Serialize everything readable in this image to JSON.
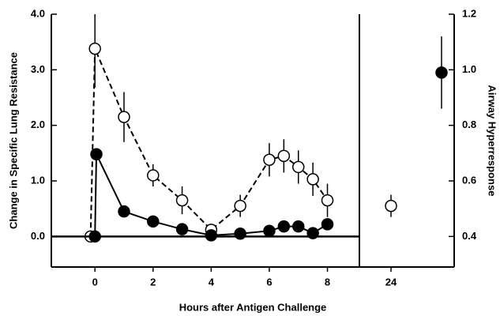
{
  "chart_data": [
    {
      "type": "scatter",
      "xlabel": "Hours after Antigen Challenge",
      "ylabel": "Change in Specific Lung Resistance",
      "xlim": [
        -1.5,
        9.1
      ],
      "xticks": [
        0,
        2,
        4,
        6,
        8
      ],
      "ylim": [
        -0.55,
        4.0
      ],
      "yticks": [
        {
          "value": 0,
          "label": "0.0"
        },
        {
          "value": 1,
          "label": "1.0"
        },
        {
          "value": 2,
          "label": "2.0"
        },
        {
          "value": 3,
          "label": "3.0"
        },
        {
          "value": 4,
          "label": "4.0"
        }
      ],
      "series": [
        {
          "color": "#000000",
          "marker": "open",
          "line": "dashed",
          "x": [
            -0.15,
            0,
            1,
            2,
            3,
            4,
            5,
            6,
            6.5,
            7,
            7.5,
            8
          ],
          "values": [
            0,
            3.38,
            2.15,
            1.1,
            0.65,
            0.12,
            0.55,
            1.38,
            1.45,
            1.25,
            1.03,
            0.65
          ],
          "errors": [
            null,
            0.7,
            0.45,
            0.2,
            0.25,
            0.1,
            0.2,
            0.3,
            0.3,
            0.3,
            0.3,
            0.3
          ]
        },
        {
          "color": "#000000",
          "marker": "filled",
          "line": "solid",
          "x": [
            0,
            0.05,
            1,
            2,
            3,
            4,
            5,
            6,
            6.5,
            7,
            7.5,
            8
          ],
          "values": [
            0,
            1.48,
            0.45,
            0.27,
            0.13,
            0.02,
            0.05,
            0.1,
            0.18,
            0.18,
            0.06,
            0.22
          ],
          "errors": [
            null,
            null,
            null,
            null,
            null,
            null,
            null,
            null,
            null,
            null,
            null,
            null
          ]
        }
      ]
    },
    {
      "type": "scatter",
      "y2label": "Airway Hyperresponse",
      "xlim": [
        23,
        26
      ],
      "xticks": [
        24
      ],
      "y2lim": [
        0.29,
        1.2
      ],
      "y2ticks": [
        0.4,
        0.6,
        0.8,
        {
          "value": 1.0,
          "label": "1.0"
        },
        1.2
      ],
      "series": [
        {
          "color": "#000000",
          "marker": "open",
          "axis": "y2",
          "x": [
            24
          ],
          "values": [
            0.51
          ],
          "errors": [
            0.04
          ]
        },
        {
          "color": "#000000",
          "marker": "filled",
          "axis": "y2",
          "x": [
            25.6
          ],
          "values": [
            0.99
          ],
          "errors": [
            0.13
          ]
        }
      ]
    }
  ]
}
